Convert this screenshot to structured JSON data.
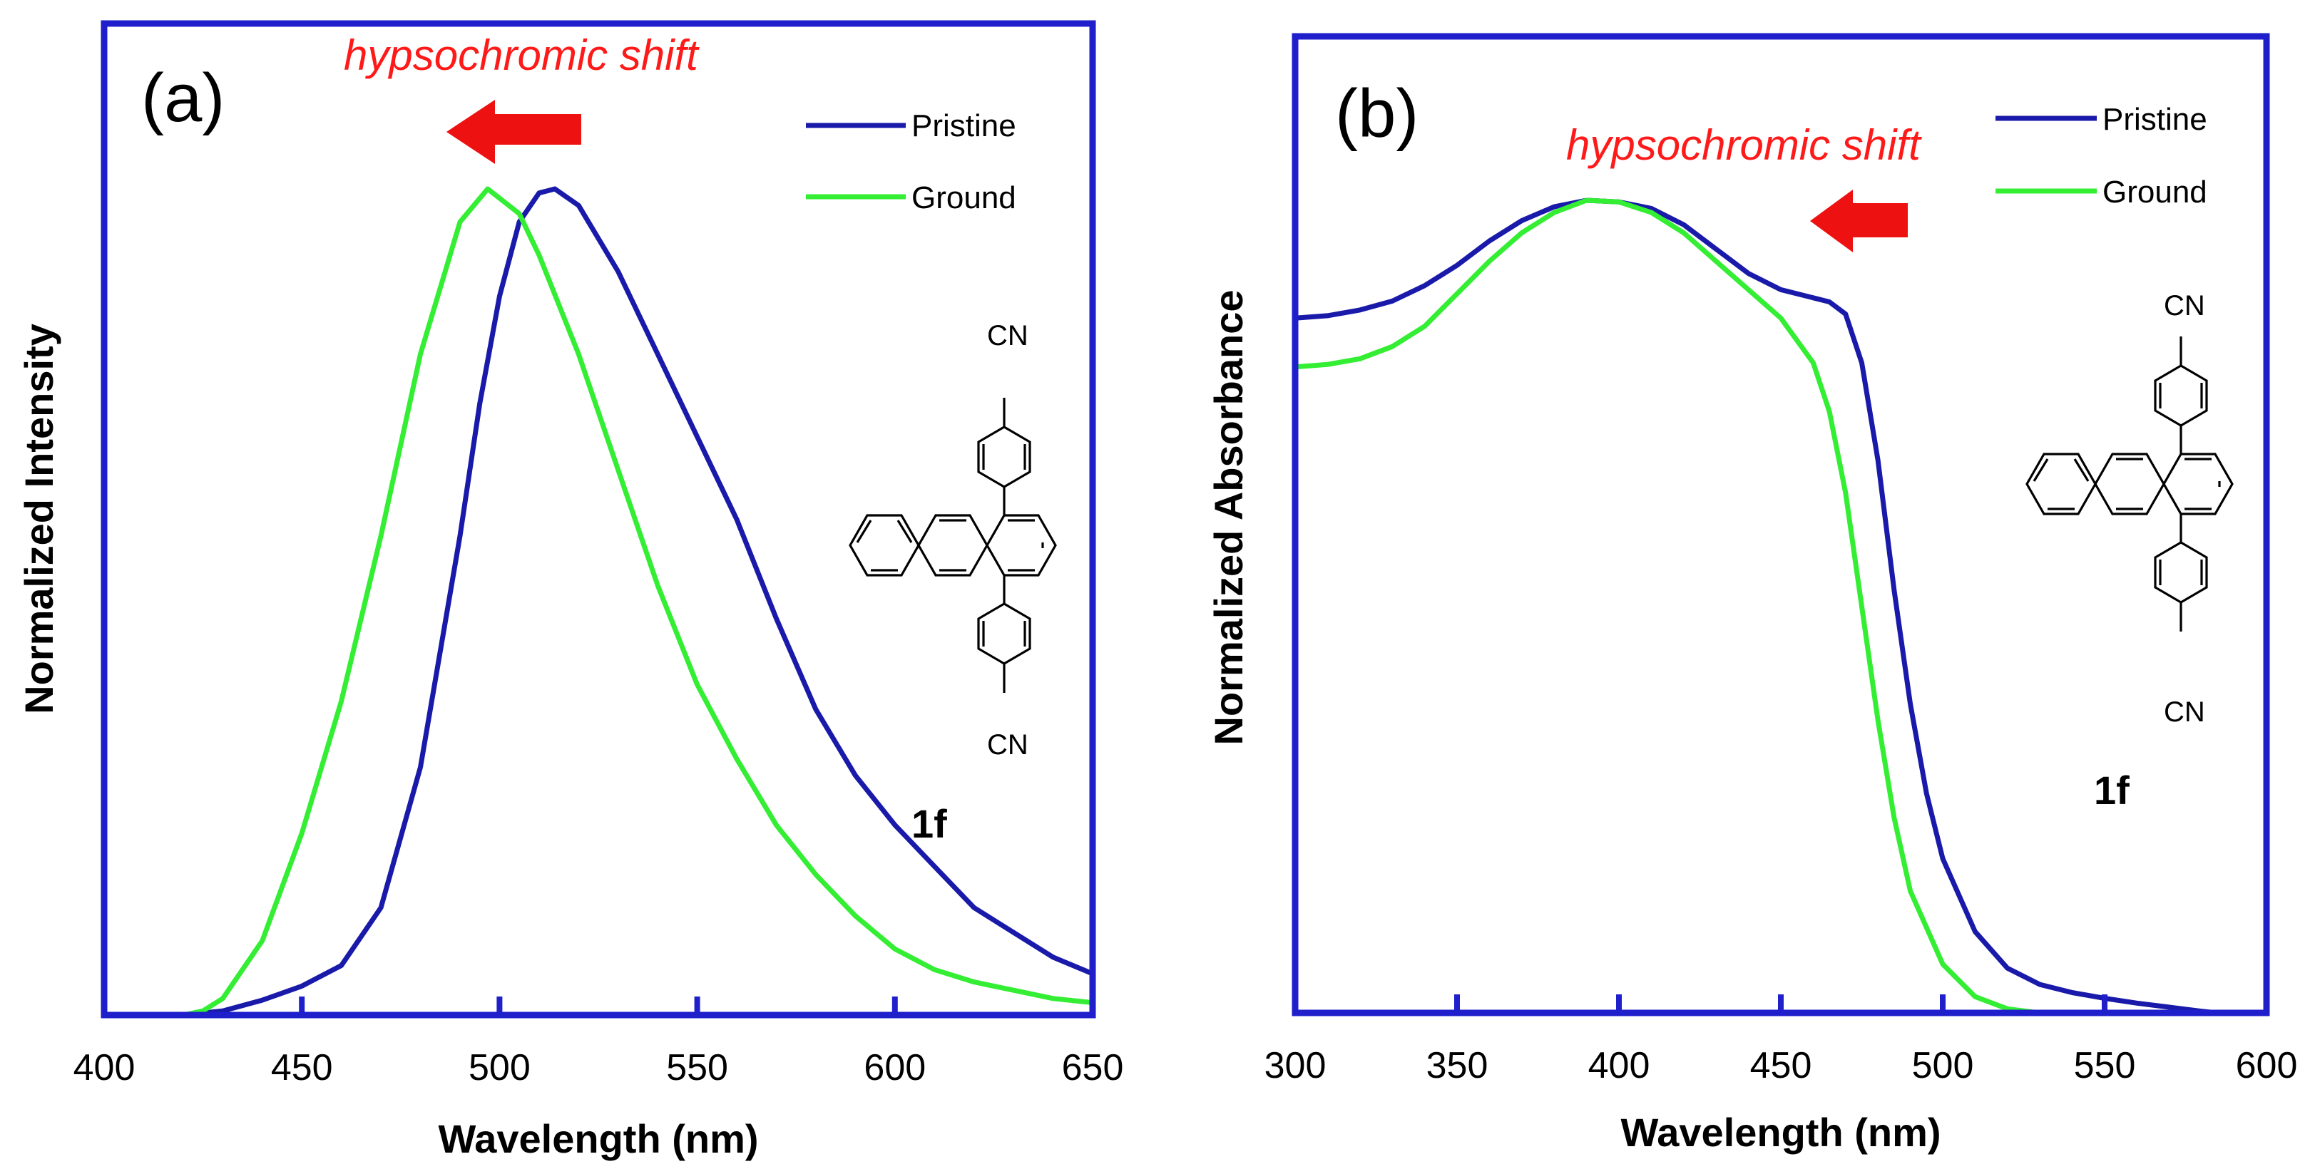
{
  "figure": {
    "colors": {
      "pristine": "#1a1aaa",
      "ground": "#33ee33",
      "frame": "#1f1fcc",
      "arrow": "#ee1111",
      "annotation": "#ff1a1a"
    },
    "structure": {
      "cn_label": "CN",
      "icon": "anthracene-dicyano-structure-icon"
    }
  },
  "chart_data": [
    {
      "panel": "(a)",
      "type": "line",
      "title": "",
      "xlabel": "Wavelength (nm)",
      "ylabel": "Normalized Intensity",
      "xlim": [
        400,
        650
      ],
      "ylim": [
        0,
        1.0
      ],
      "xticks": [
        400,
        450,
        500,
        550,
        600,
        650
      ],
      "grid": false,
      "legend_position": "top-right",
      "annotation": "hypsochromic shift",
      "arrow_direction": "left",
      "compound_label": "1f",
      "series": [
        {
          "name": "Pristine",
          "color_key": "pristine",
          "x": [
            400,
            420,
            430,
            440,
            450,
            460,
            470,
            480,
            490,
            495,
            500,
            505,
            510,
            514,
            520,
            530,
            540,
            550,
            560,
            570,
            580,
            590,
            600,
            610,
            620,
            630,
            640,
            650
          ],
          "y": [
            0,
            0,
            0.005,
            0.018,
            0.035,
            0.06,
            0.13,
            0.3,
            0.58,
            0.74,
            0.87,
            0.96,
            0.995,
            1.0,
            0.98,
            0.9,
            0.8,
            0.7,
            0.6,
            0.48,
            0.37,
            0.29,
            0.23,
            0.18,
            0.13,
            0.1,
            0.07,
            0.05
          ]
        },
        {
          "name": "Ground",
          "color_key": "ground",
          "x": [
            400,
            420,
            425,
            430,
            440,
            450,
            460,
            470,
            480,
            490,
            497,
            505,
            510,
            520,
            530,
            540,
            550,
            560,
            570,
            580,
            590,
            600,
            610,
            620,
            630,
            640,
            650
          ],
          "y": [
            0,
            0,
            0.005,
            0.02,
            0.09,
            0.22,
            0.38,
            0.58,
            0.8,
            0.96,
            1.0,
            0.97,
            0.92,
            0.8,
            0.66,
            0.52,
            0.4,
            0.31,
            0.23,
            0.17,
            0.12,
            0.08,
            0.055,
            0.04,
            0.03,
            0.02,
            0.015
          ]
        }
      ]
    },
    {
      "panel": "(b)",
      "type": "line",
      "title": "",
      "xlabel": "Wavelength (nm)",
      "ylabel": "Normalized Absorbance",
      "xlim": [
        300,
        600
      ],
      "ylim": [
        0,
        1.0
      ],
      "xticks": [
        300,
        350,
        400,
        450,
        500,
        550,
        600
      ],
      "grid": false,
      "legend_position": "top-right",
      "annotation": "hypsochromic shift",
      "arrow_direction": "left",
      "compound_label": "1f",
      "series": [
        {
          "name": "Pristine",
          "color_key": "pristine",
          "x": [
            300,
            310,
            320,
            330,
            340,
            350,
            360,
            370,
            380,
            390,
            400,
            410,
            420,
            430,
            440,
            450,
            460,
            465,
            470,
            475,
            480,
            485,
            490,
            495,
            500,
            510,
            520,
            530,
            540,
            550,
            560,
            570,
            580,
            585
          ],
          "y": [
            0.855,
            0.858,
            0.865,
            0.876,
            0.895,
            0.92,
            0.95,
            0.975,
            0.992,
            1.0,
            0.998,
            0.99,
            0.97,
            0.94,
            0.91,
            0.89,
            0.88,
            0.875,
            0.86,
            0.8,
            0.68,
            0.52,
            0.38,
            0.27,
            0.19,
            0.1,
            0.055,
            0.035,
            0.025,
            0.018,
            0.012,
            0.007,
            0.002,
            0
          ]
        },
        {
          "name": "Ground",
          "color_key": "ground",
          "x": [
            300,
            310,
            320,
            330,
            340,
            350,
            360,
            370,
            380,
            390,
            400,
            410,
            420,
            430,
            440,
            450,
            460,
            465,
            470,
            475,
            480,
            485,
            490,
            500,
            510,
            520,
            530
          ],
          "y": [
            0.795,
            0.798,
            0.805,
            0.82,
            0.845,
            0.885,
            0.925,
            0.96,
            0.985,
            1.0,
            0.998,
            0.985,
            0.96,
            0.925,
            0.89,
            0.855,
            0.8,
            0.74,
            0.64,
            0.5,
            0.36,
            0.24,
            0.15,
            0.06,
            0.02,
            0.005,
            0
          ]
        }
      ]
    }
  ]
}
